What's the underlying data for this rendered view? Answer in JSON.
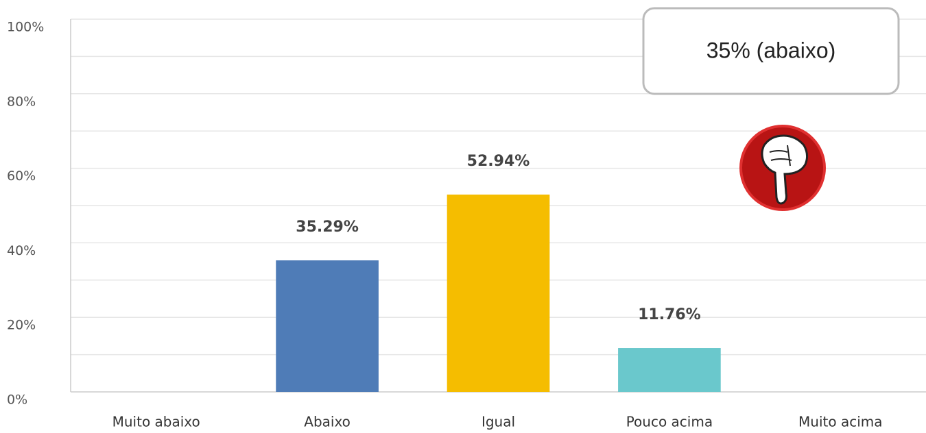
{
  "chart_data": {
    "type": "bar",
    "categories": [
      "Muito abaixo",
      "Abaixo",
      "Igual",
      "Pouco acima",
      "Muito acima"
    ],
    "values": [
      0,
      35.29,
      52.94,
      11.76,
      0
    ],
    "value_labels": [
      null,
      "35.29%",
      "52.94%",
      "11.76%",
      null
    ],
    "colors": [
      "#4f7cb7",
      "#4f7cb7",
      "#f5bd00",
      "#6ac8cc",
      "#6ac8cc"
    ],
    "ylim": [
      0,
      100
    ],
    "yticks": [
      {
        "value": 0,
        "label": "0%"
      },
      {
        "value": 20,
        "label": "20%"
      },
      {
        "value": 40,
        "label": "40%"
      },
      {
        "value": 60,
        "label": "60%"
      },
      {
        "value": 80,
        "label": "80%"
      },
      {
        "value": 100,
        "label": "100%"
      }
    ],
    "minor_yticks": [
      10,
      30,
      50,
      70,
      90
    ],
    "grid": true,
    "annotation": "35% (abaixo)"
  }
}
